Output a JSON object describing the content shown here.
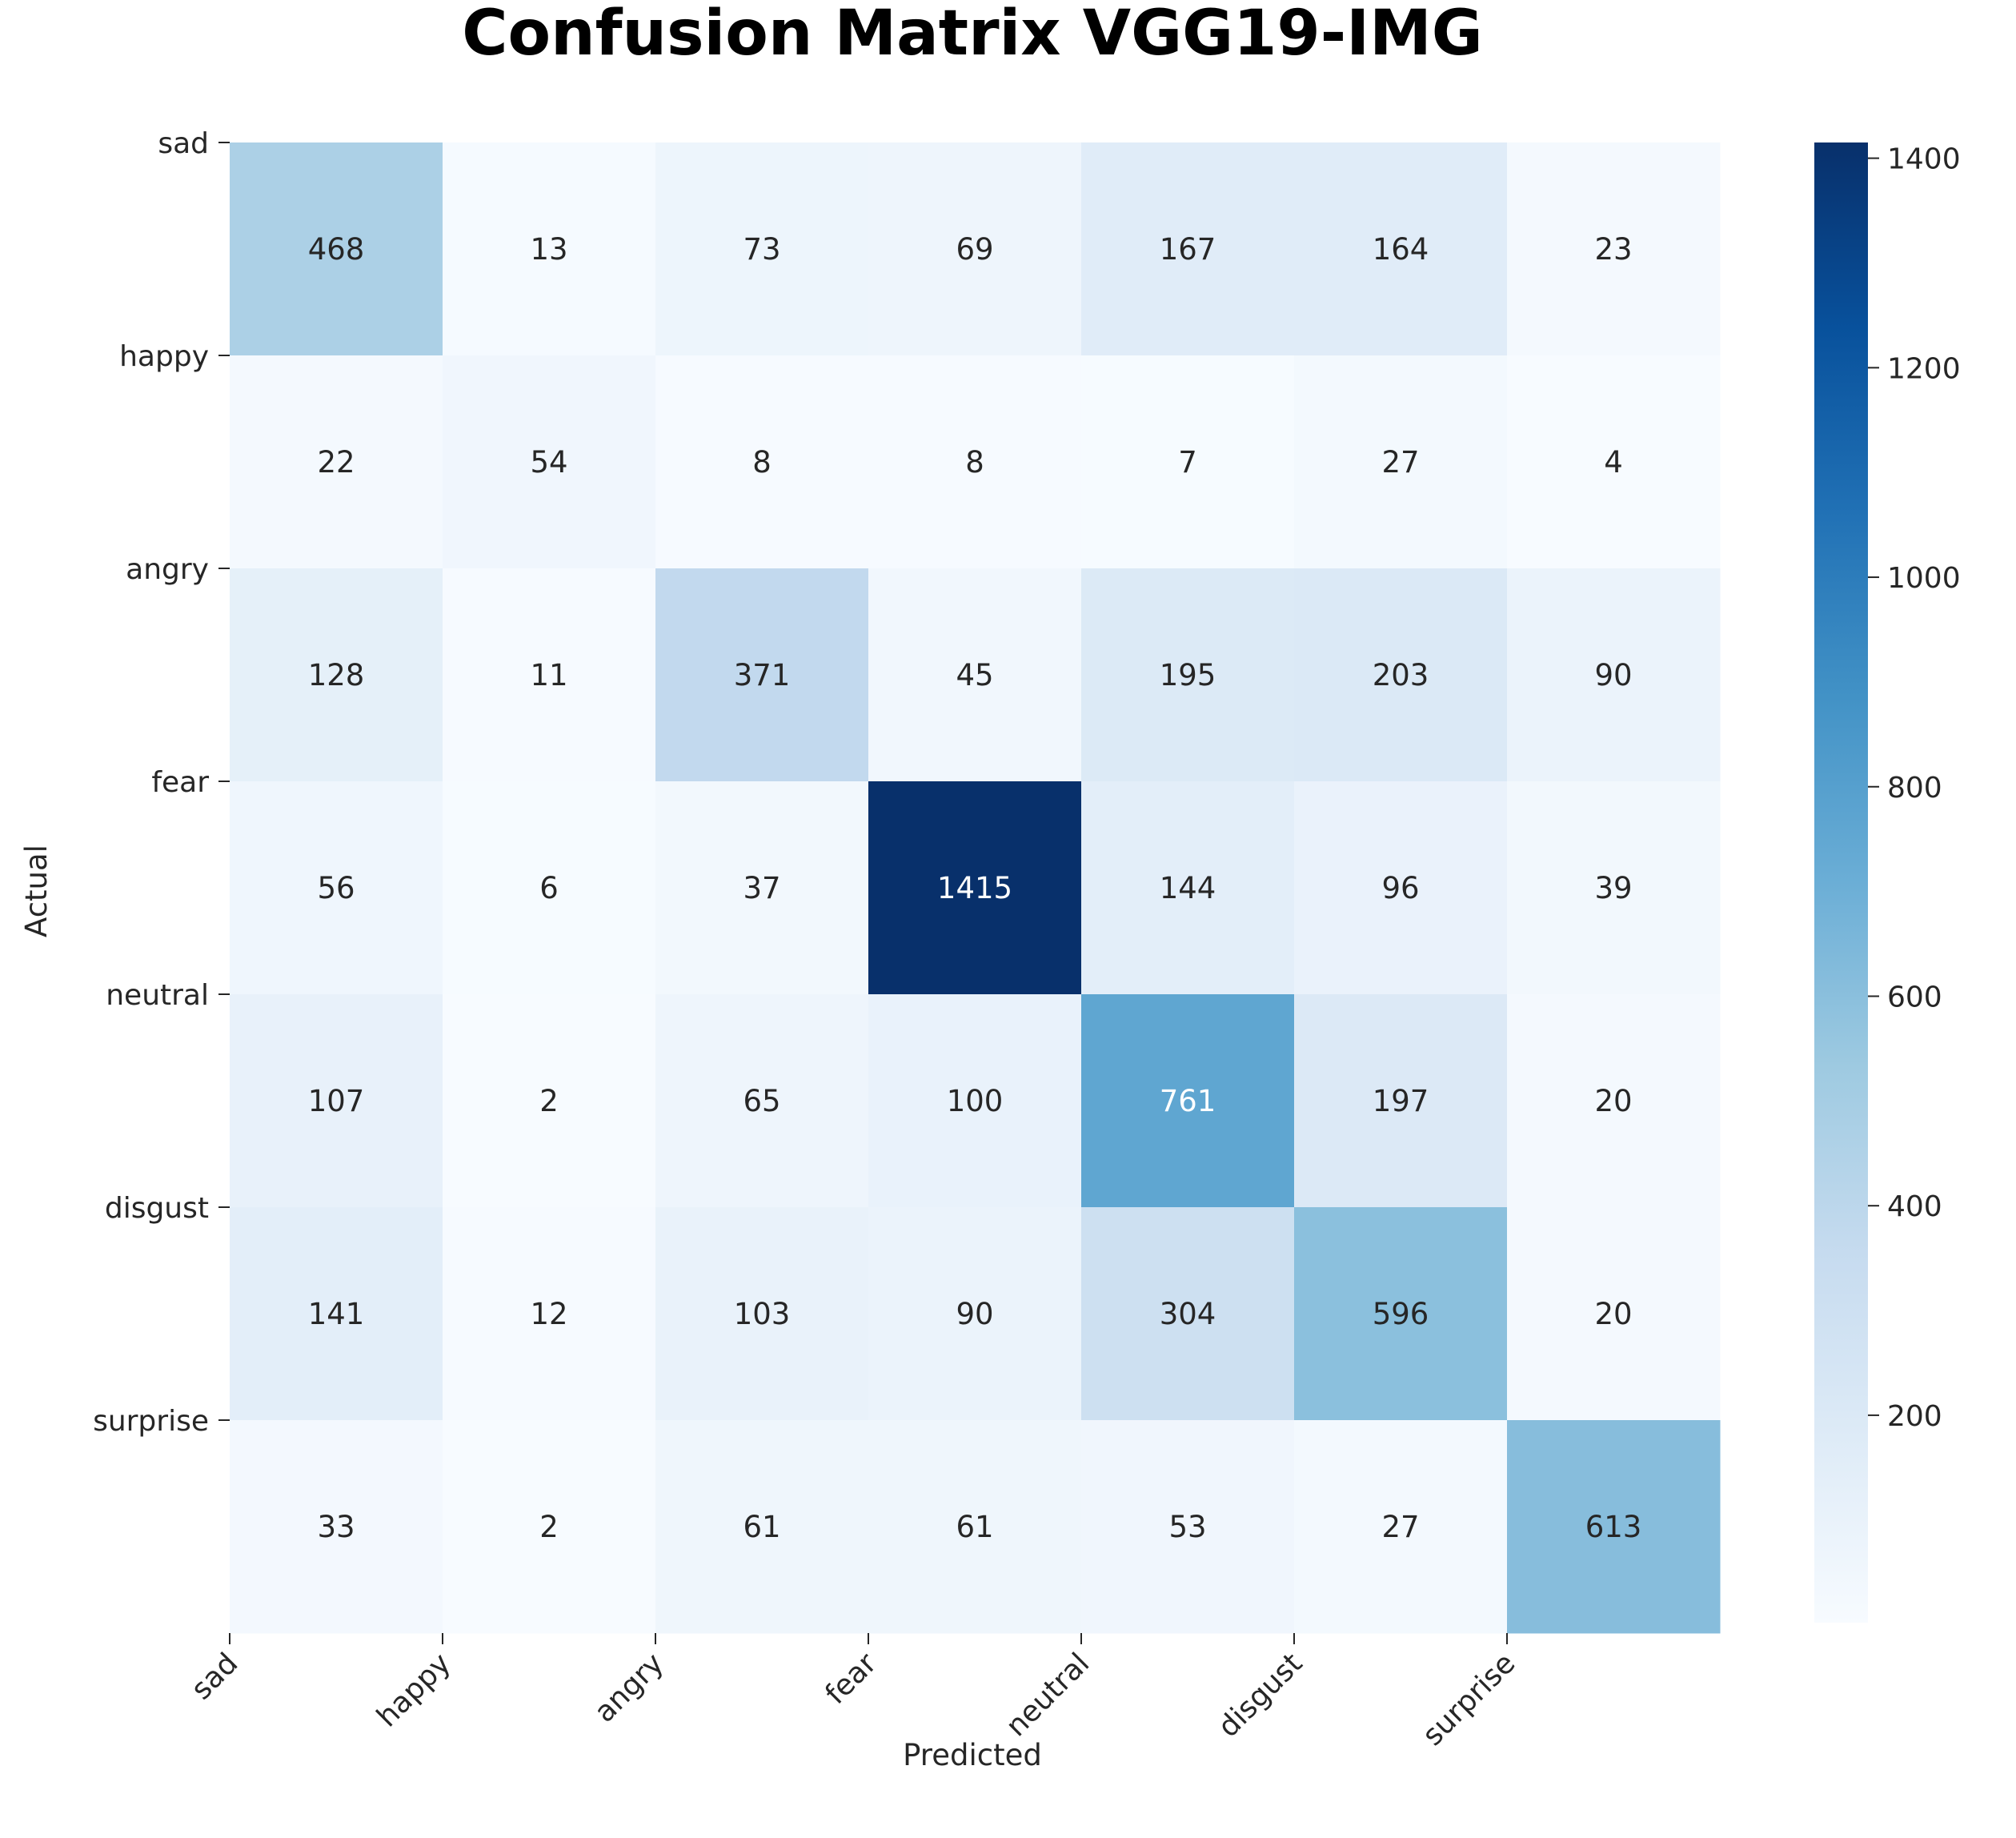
{
  "chart_data": {
    "type": "heatmap",
    "title": "Confusion Matrix VGG19-IMG",
    "xlabel": "Predicted",
    "ylabel": "Actual",
    "x_categories": [
      "sad",
      "happy",
      "angry",
      "fear",
      "neutral",
      "disgust",
      "surprise"
    ],
    "y_categories": [
      "sad",
      "happy",
      "angry",
      "fear",
      "neutral",
      "disgust",
      "surprise"
    ],
    "values": [
      [
        468,
        13,
        73,
        69,
        167,
        164,
        23
      ],
      [
        22,
        54,
        8,
        8,
        7,
        27,
        4
      ],
      [
        128,
        11,
        371,
        45,
        195,
        203,
        90
      ],
      [
        56,
        6,
        37,
        1415,
        144,
        96,
        39
      ],
      [
        107,
        2,
        65,
        100,
        761,
        197,
        20
      ],
      [
        141,
        12,
        103,
        90,
        304,
        596,
        20
      ],
      [
        33,
        2,
        61,
        61,
        53,
        27,
        613
      ]
    ],
    "colormap": "Blues",
    "vmin": 2,
    "vmax": 1415,
    "colorbar_ticks": [
      200,
      400,
      600,
      800,
      1000,
      1200,
      1400
    ],
    "colorbar_tick_labels": [
      "200",
      "400",
      "600",
      "800",
      "1000",
      "1200",
      "1400"
    ],
    "annotation_colors": {
      "dark_text": "#262626",
      "light_text": "#ffffff"
    }
  }
}
